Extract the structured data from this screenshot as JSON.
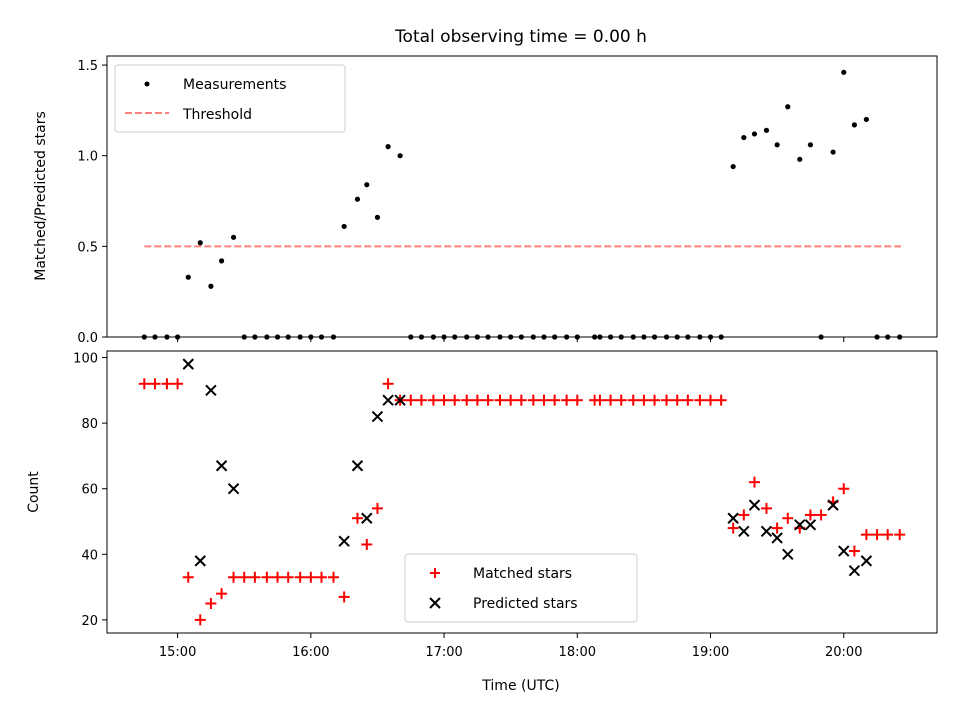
{
  "title": "Total observing time = 0.00 h",
  "colors": {
    "measurement": "#000000",
    "threshold": "#ff7f7f",
    "matched": "#ff0000",
    "predicted": "#000000"
  },
  "chart_data": [
    {
      "type": "scatter",
      "ylabel": "Matched/Predicted stars",
      "xlim": [
        14.47,
        20.7
      ],
      "ylim": [
        0,
        1.55
      ],
      "yticks": [
        0,
        0.5,
        1.0,
        1.5
      ],
      "ytick_labels": [
        "0.0",
        "0.5",
        "1.0",
        "1.5"
      ],
      "legend": {
        "location": "top-left",
        "entries": [
          "Measurements",
          "Threshold"
        ]
      },
      "threshold": {
        "name": "Threshold",
        "value": 0.5,
        "x_start": 14.75,
        "x_end": 20.43
      },
      "series": [
        {
          "name": "Measurements",
          "points": [
            [
              14.75,
              0
            ],
            [
              14.83,
              0
            ],
            [
              14.92,
              0
            ],
            [
              15.0,
              0
            ],
            [
              15.08,
              0.33
            ],
            [
              15.17,
              0.52
            ],
            [
              15.25,
              0.28
            ],
            [
              15.33,
              0.42
            ],
            [
              15.42,
              0.55
            ],
            [
              15.5,
              0
            ],
            [
              15.58,
              0
            ],
            [
              15.67,
              0
            ],
            [
              15.75,
              0
            ],
            [
              15.83,
              0
            ],
            [
              15.92,
              0
            ],
            [
              16.0,
              0
            ],
            [
              16.08,
              0
            ],
            [
              16.17,
              0
            ],
            [
              16.25,
              0.61
            ],
            [
              16.35,
              0.76
            ],
            [
              16.42,
              0.84
            ],
            [
              16.5,
              0.66
            ],
            [
              16.58,
              1.05
            ],
            [
              16.67,
              1.0
            ],
            [
              16.75,
              0
            ],
            [
              16.83,
              0
            ],
            [
              16.92,
              0
            ],
            [
              17.0,
              0
            ],
            [
              17.08,
              0
            ],
            [
              17.17,
              0
            ],
            [
              17.25,
              0
            ],
            [
              17.33,
              0
            ],
            [
              17.42,
              0
            ],
            [
              17.5,
              0
            ],
            [
              17.58,
              0
            ],
            [
              17.67,
              0
            ],
            [
              17.75,
              0
            ],
            [
              17.83,
              0
            ],
            [
              17.92,
              0
            ],
            [
              18.0,
              0
            ],
            [
              18.13,
              0
            ],
            [
              18.17,
              0
            ],
            [
              18.25,
              0
            ],
            [
              18.33,
              0
            ],
            [
              18.42,
              0
            ],
            [
              18.5,
              0
            ],
            [
              18.58,
              0
            ],
            [
              18.67,
              0
            ],
            [
              18.75,
              0
            ],
            [
              18.83,
              0
            ],
            [
              18.92,
              0
            ],
            [
              19.0,
              0
            ],
            [
              19.08,
              0
            ],
            [
              19.17,
              0.94
            ],
            [
              19.25,
              1.1
            ],
            [
              19.33,
              1.12
            ],
            [
              19.42,
              1.14
            ],
            [
              19.5,
              1.06
            ],
            [
              19.58,
              1.27
            ],
            [
              19.67,
              0.98
            ],
            [
              19.75,
              1.06
            ],
            [
              19.83,
              0
            ],
            [
              19.92,
              1.02
            ],
            [
              20.0,
              1.46
            ],
            [
              20.08,
              1.17
            ],
            [
              20.17,
              1.2
            ],
            [
              20.25,
              0
            ],
            [
              20.33,
              0
            ],
            [
              20.42,
              0
            ]
          ]
        }
      ]
    },
    {
      "type": "scatter",
      "xlabel": "Time (UTC)",
      "ylabel": "Count",
      "xlim": [
        14.47,
        20.7
      ],
      "ylim": [
        16,
        102
      ],
      "yticks": [
        20,
        40,
        60,
        80,
        100
      ],
      "ytick_labels": [
        "20",
        "40",
        "60",
        "80",
        "100"
      ],
      "xticks": [
        15,
        16,
        17,
        18,
        19,
        20
      ],
      "xtick_labels": [
        "15:00",
        "16:00",
        "17:00",
        "18:00",
        "19:00",
        "20:00"
      ],
      "legend": {
        "location": "bottom-center",
        "entries": [
          "Matched stars",
          "Predicted stars"
        ]
      },
      "series": [
        {
          "name": "Matched stars",
          "marker": "plus",
          "points": [
            [
              14.75,
              92
            ],
            [
              14.83,
              92
            ],
            [
              14.92,
              92
            ],
            [
              15.0,
              92
            ],
            [
              15.08,
              33
            ],
            [
              15.17,
              20
            ],
            [
              15.25,
              25
            ],
            [
              15.33,
              28
            ],
            [
              15.42,
              33
            ],
            [
              15.5,
              33
            ],
            [
              15.58,
              33
            ],
            [
              15.67,
              33
            ],
            [
              15.75,
              33
            ],
            [
              15.83,
              33
            ],
            [
              15.92,
              33
            ],
            [
              16.0,
              33
            ],
            [
              16.08,
              33
            ],
            [
              16.17,
              33
            ],
            [
              16.25,
              27
            ],
            [
              16.35,
              51
            ],
            [
              16.42,
              43
            ],
            [
              16.5,
              54
            ],
            [
              16.58,
              92
            ],
            [
              16.67,
              87
            ],
            [
              16.75,
              87
            ],
            [
              16.83,
              87
            ],
            [
              16.92,
              87
            ],
            [
              17.0,
              87
            ],
            [
              17.08,
              87
            ],
            [
              17.17,
              87
            ],
            [
              17.25,
              87
            ],
            [
              17.33,
              87
            ],
            [
              17.42,
              87
            ],
            [
              17.5,
              87
            ],
            [
              17.58,
              87
            ],
            [
              17.67,
              87
            ],
            [
              17.75,
              87
            ],
            [
              17.83,
              87
            ],
            [
              17.92,
              87
            ],
            [
              18.0,
              87
            ],
            [
              18.13,
              87
            ],
            [
              18.17,
              87
            ],
            [
              18.25,
              87
            ],
            [
              18.33,
              87
            ],
            [
              18.42,
              87
            ],
            [
              18.5,
              87
            ],
            [
              18.58,
              87
            ],
            [
              18.67,
              87
            ],
            [
              18.75,
              87
            ],
            [
              18.83,
              87
            ],
            [
              18.92,
              87
            ],
            [
              19.0,
              87
            ],
            [
              19.08,
              87
            ],
            [
              19.17,
              48
            ],
            [
              19.25,
              52
            ],
            [
              19.33,
              62
            ],
            [
              19.42,
              54
            ],
            [
              19.5,
              48
            ],
            [
              19.58,
              51
            ],
            [
              19.67,
              48
            ],
            [
              19.75,
              52
            ],
            [
              19.83,
              52
            ],
            [
              19.92,
              56
            ],
            [
              20.0,
              60
            ],
            [
              20.08,
              41
            ],
            [
              20.17,
              46
            ],
            [
              20.25,
              46
            ],
            [
              20.33,
              46
            ],
            [
              20.42,
              46
            ]
          ]
        },
        {
          "name": "Predicted stars",
          "marker": "x",
          "points": [
            [
              15.08,
              98
            ],
            [
              15.17,
              38
            ],
            [
              15.25,
              90
            ],
            [
              15.33,
              67
            ],
            [
              15.42,
              60
            ],
            [
              16.25,
              44
            ],
            [
              16.35,
              67
            ],
            [
              16.42,
              51
            ],
            [
              16.5,
              82
            ],
            [
              16.58,
              87
            ],
            [
              16.67,
              87
            ],
            [
              19.17,
              51
            ],
            [
              19.25,
              47
            ],
            [
              19.33,
              55
            ],
            [
              19.42,
              47
            ],
            [
              19.5,
              45
            ],
            [
              19.58,
              40
            ],
            [
              19.67,
              49
            ],
            [
              19.75,
              49
            ],
            [
              19.92,
              55
            ],
            [
              20.0,
              41
            ],
            [
              20.08,
              35
            ],
            [
              20.17,
              38
            ]
          ]
        }
      ]
    }
  ]
}
